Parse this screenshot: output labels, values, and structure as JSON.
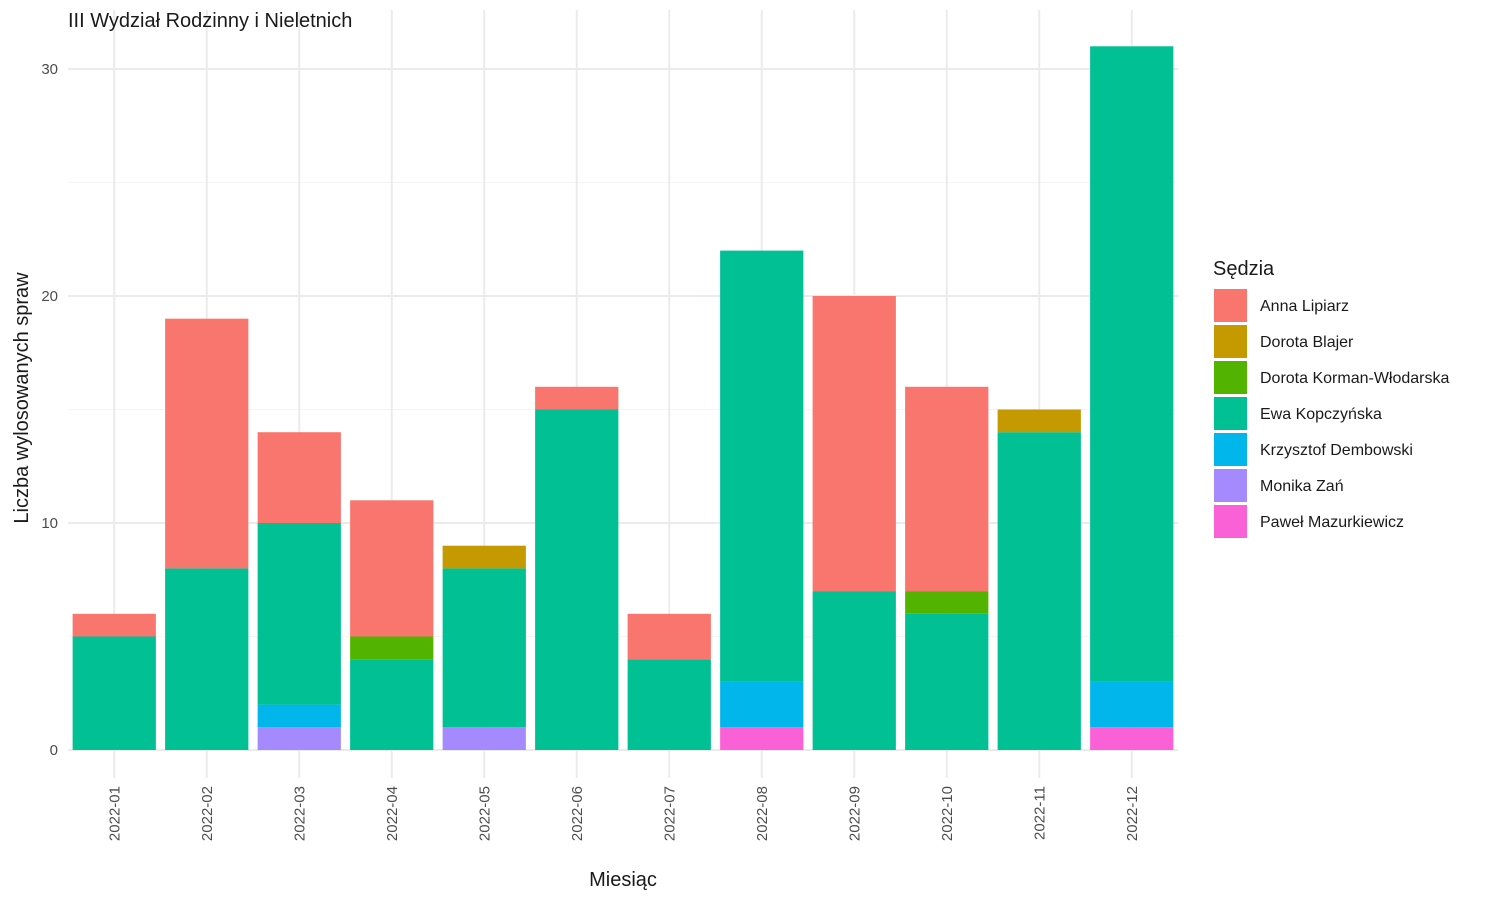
{
  "chart_data": {
    "type": "bar",
    "stacked": true,
    "title": "III Wydział Rodzinny i Nieletnich",
    "xlabel": "Miesiąc",
    "ylabel": "Liczba wylosowanych spraw",
    "ylim": [
      0,
      31
    ],
    "yticks": [
      0,
      10,
      20,
      30
    ],
    "grid": true,
    "legend_title": "Sędzia",
    "legend_position": "right",
    "categories": [
      "2022-01",
      "2022-02",
      "2022-03",
      "2022-04",
      "2022-05",
      "2022-06",
      "2022-07",
      "2022-08",
      "2022-09",
      "2022-10",
      "2022-11",
      "2022-12"
    ],
    "series": [
      {
        "name": "Anna Lipiarz",
        "color": "#F8766D",
        "values": [
          1,
          11,
          4,
          6,
          0,
          1,
          2,
          0,
          13,
          9,
          0,
          0
        ]
      },
      {
        "name": "Dorota Blajer",
        "color": "#C49A00",
        "values": [
          0,
          0,
          0,
          0,
          1,
          0,
          0,
          0,
          0,
          0,
          1,
          0
        ]
      },
      {
        "name": "Dorota Korman-Włodarska",
        "color": "#53B400",
        "values": [
          0,
          0,
          0,
          1,
          0,
          0,
          0,
          0,
          0,
          1,
          0,
          0
        ]
      },
      {
        "name": "Ewa Kopczyńska",
        "color": "#00C094",
        "values": [
          5,
          8,
          8,
          4,
          7,
          15,
          4,
          19,
          7,
          6,
          14,
          28
        ]
      },
      {
        "name": "Krzysztof Dembowski",
        "color": "#00B6EB",
        "values": [
          0,
          0,
          1,
          0,
          0,
          0,
          0,
          2,
          0,
          0,
          0,
          2
        ]
      },
      {
        "name": "Monika Zań",
        "color": "#A58AFF",
        "values": [
          0,
          0,
          1,
          0,
          1,
          0,
          0,
          0,
          0,
          0,
          0,
          0
        ]
      },
      {
        "name": "Paweł Mazurkiewicz",
        "color": "#FB61D7",
        "values": [
          0,
          0,
          0,
          0,
          0,
          0,
          0,
          1,
          0,
          0,
          0,
          1
        ]
      }
    ]
  }
}
